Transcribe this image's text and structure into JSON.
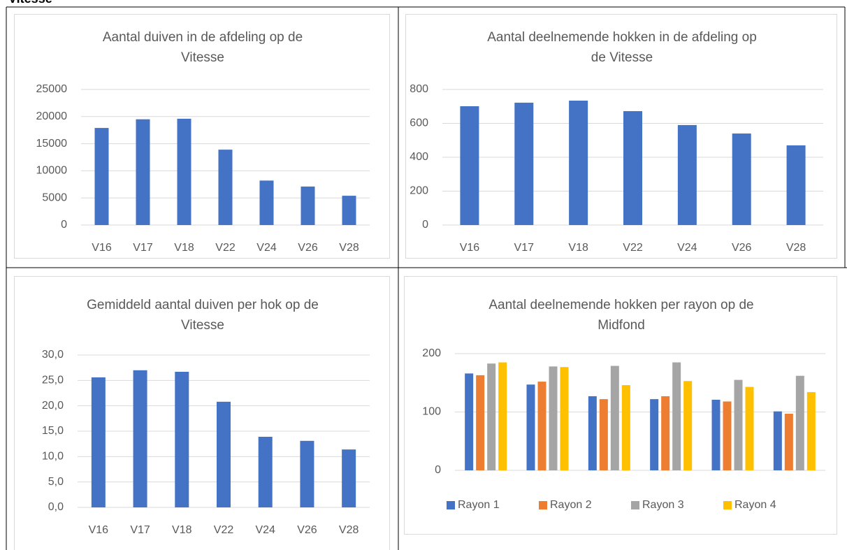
{
  "heading": "Vitesse",
  "chart_data": [
    {
      "type": "bar",
      "title": "Aantal duiven in de afdeling op de Vitesse",
      "categories": [
        "V16",
        "V17",
        "V18",
        "V22",
        "V24",
        "V26",
        "V28"
      ],
      "values": [
        17900,
        19500,
        19600,
        13900,
        8200,
        7100,
        5400
      ],
      "color": "#4472c4",
      "ylim": [
        0,
        25000
      ],
      "yticks": [
        0,
        5000,
        10000,
        15000,
        20000,
        25000
      ],
      "grid": true
    },
    {
      "type": "bar",
      "title": "Aantal deelnemende hokken in de afdeling op de Vitesse",
      "categories": [
        "V16",
        "V17",
        "V18",
        "V22",
        "V24",
        "V26",
        "V28"
      ],
      "values": [
        701,
        722,
        734,
        672,
        590,
        540,
        470
      ],
      "color": "#4472c4",
      "ylim": [
        0,
        800
      ],
      "yticks": [
        0,
        200,
        400,
        600,
        800
      ],
      "grid": true
    },
    {
      "type": "bar",
      "title": "Gemiddeld aantal duiven per hok op de Vitesse",
      "categories": [
        "V16",
        "V17",
        "V18",
        "V22",
        "V24",
        "V26",
        "V28"
      ],
      "values": [
        25.6,
        27.0,
        26.7,
        20.8,
        13.9,
        13.1,
        11.4
      ],
      "color": "#4472c4",
      "ylim": [
        0,
        30
      ],
      "yticks": [
        {
          "value": 0,
          "label": "0,0"
        },
        {
          "value": 5,
          "label": "5,0"
        },
        {
          "value": 10,
          "label": "10,0"
        },
        {
          "value": 15,
          "label": "15,0"
        },
        {
          "value": 20,
          "label": "20,0"
        },
        {
          "value": 25,
          "label": "25,0"
        },
        {
          "value": 30,
          "label": "30,0"
        }
      ],
      "grid": true
    },
    {
      "type": "grouped_bar",
      "title": "Aantal deelnemende hokken per rayon op de Midfond",
      "categories": [
        null,
        null,
        null,
        null,
        null,
        null
      ],
      "series": [
        {
          "name": "Rayon 1",
          "color": "#4472c4",
          "values": [
            166,
            147,
            127,
            122,
            121,
            101
          ]
        },
        {
          "name": "Rayon 2",
          "color": "#ed7d31",
          "values": [
            163,
            152,
            122,
            127,
            118,
            97
          ]
        },
        {
          "name": "Rayon 3",
          "color": "#a5a5a5",
          "values": [
            183,
            178,
            179,
            185,
            155,
            162
          ]
        },
        {
          "name": "Rayon 4",
          "color": "#ffc000",
          "values": [
            185,
            177,
            146,
            153,
            143,
            134
          ]
        }
      ],
      "ylim": [
        0,
        200
      ],
      "yticks": [
        0,
        100,
        200
      ],
      "grid": true,
      "legend": "bottom"
    }
  ]
}
